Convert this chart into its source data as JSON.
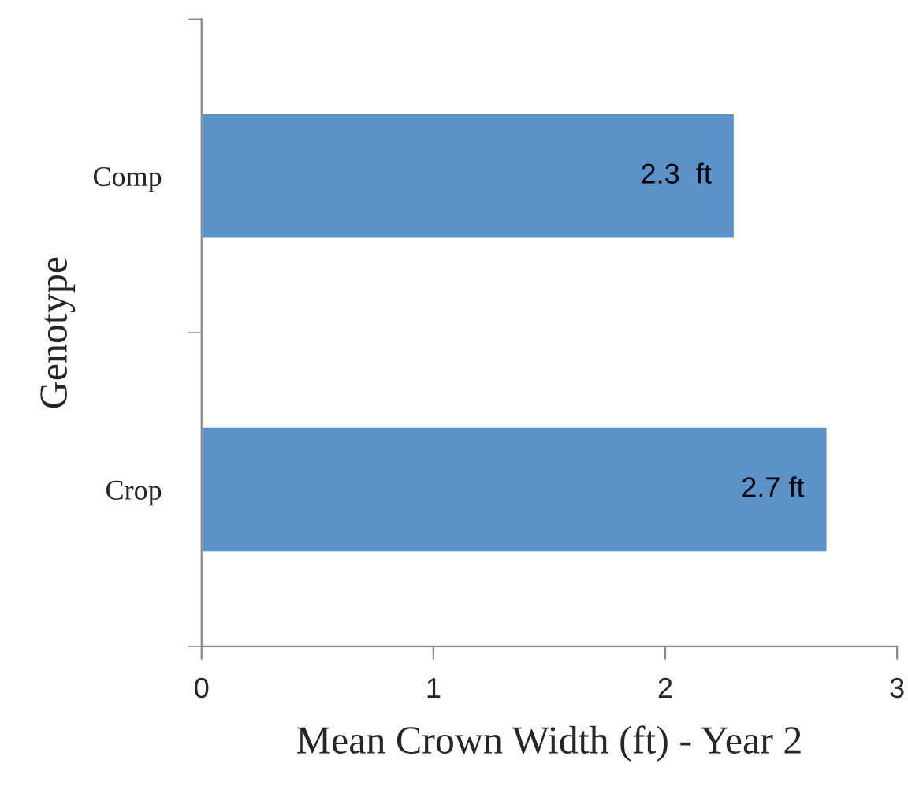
{
  "chart_data": {
    "type": "bar",
    "orientation": "horizontal",
    "categories": [
      "Comp",
      "Crop"
    ],
    "values": [
      2.3,
      2.7
    ],
    "value_labels": [
      "2.3  ft",
      "2.7 ft"
    ],
    "color": "#5b93c9",
    "xlim": [
      0,
      3
    ],
    "xticks": [
      0,
      1,
      2,
      3
    ],
    "xlabel": "Mean Crown Width (ft) - Year 2",
    "ylabel": "Genotype",
    "grid": false
  }
}
